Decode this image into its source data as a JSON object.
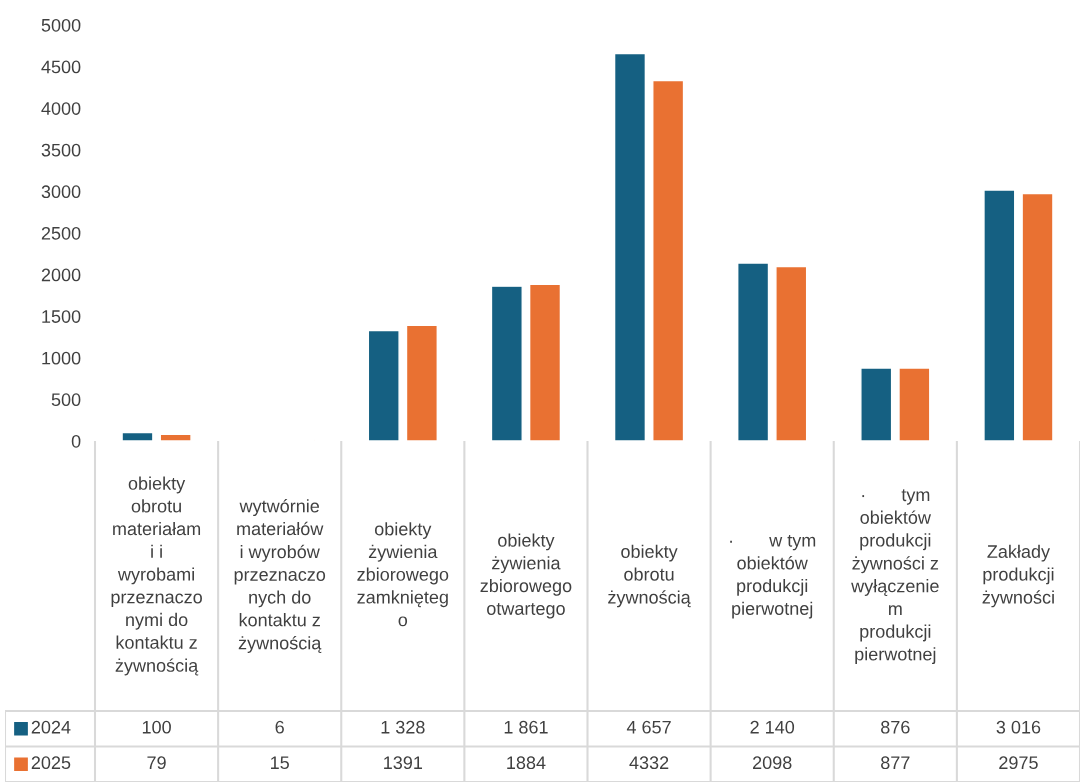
{
  "chart_data": {
    "type": "bar",
    "categories": [
      "obiekty\nobrotu\nmateriałam\ni i\nwyrobami\nprzeznaczo\nnymi do\nkontaktu z\nżywnością",
      "wytwórnie\nmateriałów\ni wyrobów\nprzeznaczo\nnych do\nkontaktu z\nżywnością",
      "obiekty\nżywienia\nzbiorowego\nzamknięteg\no",
      "obiekty\nżywienia\nzbiorowego\notwartego",
      "obiekty\nobrotu\nżywnością",
      "·       w tym\nobiektów\nprodukcji\npierwotnej",
      "·       tym\nobiektów\nprodukcji\nżywności z\nwyłączenie\nm\nprodukcji\npierwotnej",
      "Zakłady\nprodukcji\nżywności"
    ],
    "series": [
      {
        "name": "2024",
        "color": "#156082",
        "values": [
          100,
          6,
          1328,
          1861,
          4657,
          2140,
          876,
          3016
        ],
        "value_labels": [
          "100",
          "6",
          "1 328",
          "1 861",
          "4 657",
          "2 140",
          "876",
          "3 016"
        ]
      },
      {
        "name": "2025",
        "color": "#e97132",
        "values": [
          79,
          15,
          1391,
          1884,
          4332,
          2098,
          877,
          2975
        ],
        "value_labels": [
          "79",
          "15",
          "1391",
          "1884",
          "4332",
          "2098",
          "877",
          "2975"
        ]
      }
    ],
    "ylim": [
      0,
      5000
    ],
    "yticks": [
      0,
      500,
      1000,
      1500,
      2000,
      2500,
      3000,
      3500,
      4000,
      4500,
      5000
    ],
    "grid": false,
    "legend": "bottom left"
  }
}
